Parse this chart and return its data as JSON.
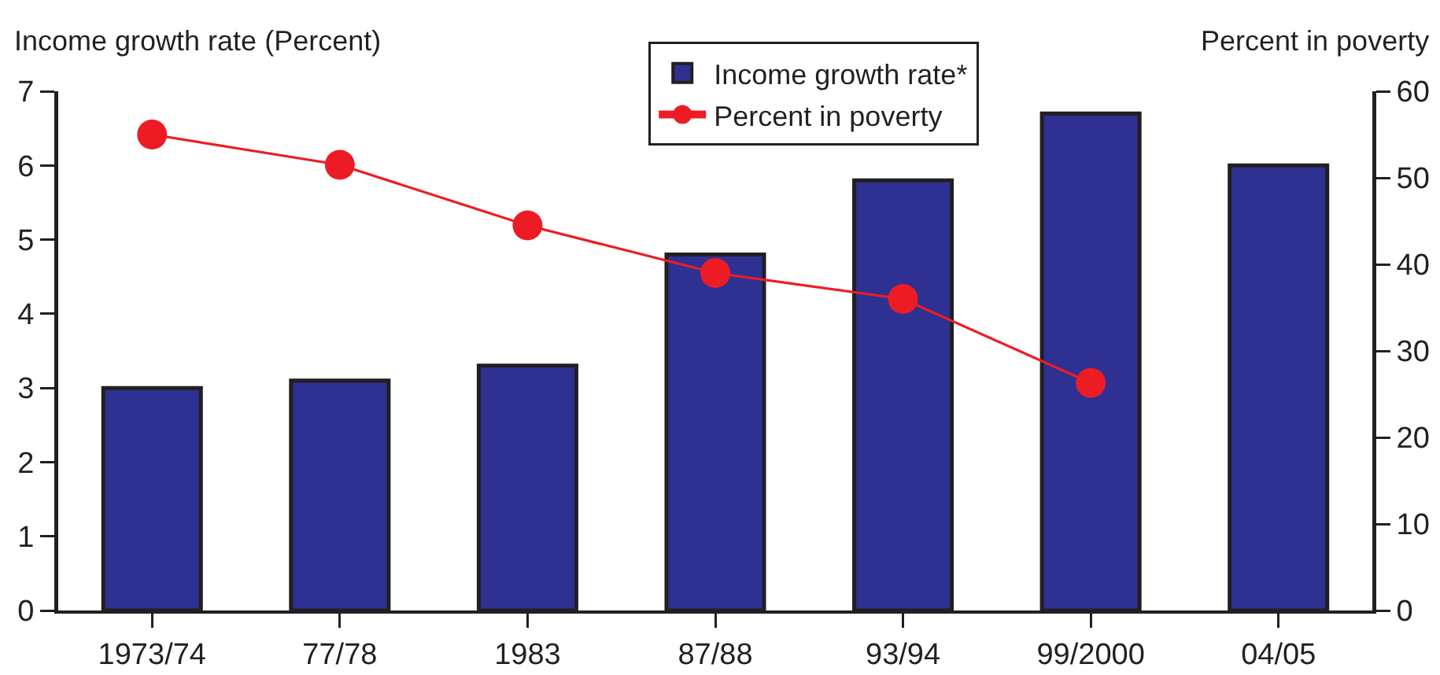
{
  "chart_data": {
    "type": "bar",
    "ylabel": "Income growth rate (Percent)",
    "y2label": "Percent in poverty",
    "categories": [
      "1973/74",
      "77/78",
      "1983",
      "87/88",
      "93/94",
      "99/2000",
      "04/05"
    ],
    "series": [
      {
        "name": "Income growth rate*",
        "color": "#2e3192",
        "values": [
          3,
          3.1,
          3.3,
          4.8,
          5.8,
          6.7,
          6
        ]
      },
      {
        "name": "Percent in poverty",
        "type": "line",
        "axis": "y2",
        "color": "#ed1c24",
        "values": [
          55,
          51.5,
          44.5,
          39,
          36,
          26.3,
          null
        ]
      }
    ],
    "ylim": [
      0,
      7
    ],
    "yticks": [
      0,
      1,
      2,
      3,
      4,
      5,
      6,
      7
    ],
    "y2lim": [
      0,
      60
    ],
    "y2ticks": [
      0,
      10,
      20,
      30,
      40,
      50,
      60
    ],
    "grid": false,
    "legend": "top",
    "marker": "circle",
    "line_style": "solid"
  }
}
